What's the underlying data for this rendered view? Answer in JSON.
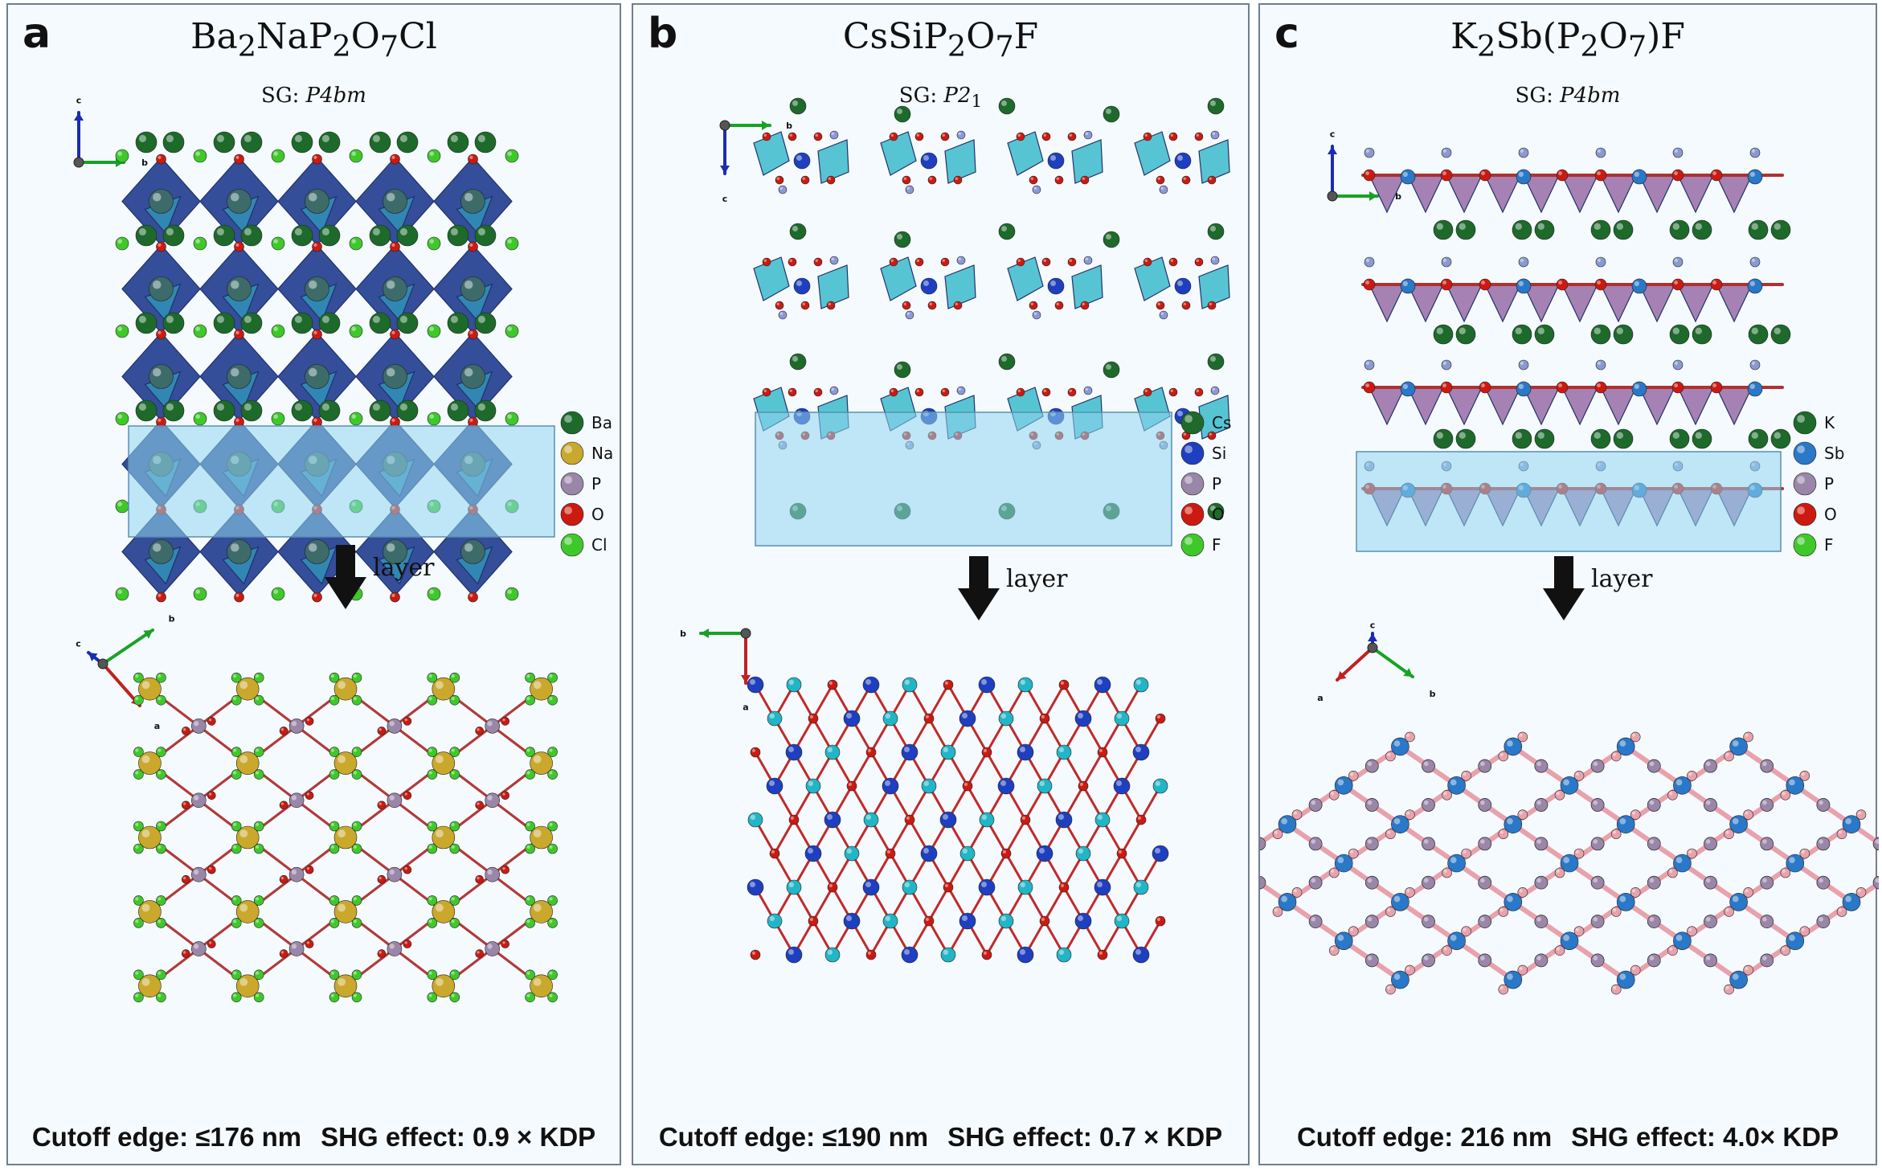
{
  "panels": [
    {
      "letter": "a",
      "title_parts": [
        "Ba",
        "2",
        "NaP",
        "2",
        "O",
        "7",
        "Cl"
      ],
      "sg_prefix": "SG: ",
      "sg_group": "P4bm",
      "legend": [
        {
          "label": "Ba",
          "color": "#1d6a2a"
        },
        {
          "label": "Na",
          "color": "#c9a82c"
        },
        {
          "label": "P",
          "color": "#9a86a8"
        },
        {
          "label": "O",
          "color": "#cc1a10"
        },
        {
          "label": "Cl",
          "color": "#3fc82a"
        }
      ],
      "layer_label": "layer",
      "axes_top": [
        "c",
        "b"
      ],
      "axes_bottom": [
        "c",
        "b",
        "a"
      ],
      "cutoff": "Cutoff edge: ≤176 nm",
      "shg": "SHG effect: 0.9 × KDP"
    },
    {
      "letter": "b",
      "title_parts": [
        "CsSiP",
        "2",
        "O",
        "7",
        "F"
      ],
      "sg_prefix": "SG: ",
      "sg_group": "P2",
      "sg_sub": "1",
      "legend": [
        {
          "label": "Cs",
          "color": "#1d6a2a"
        },
        {
          "label": "Si",
          "color": "#1e3fbf"
        },
        {
          "label": "P",
          "color": "#9a86a8"
        },
        {
          "label": "O",
          "color": "#cc1a10"
        },
        {
          "label": "F",
          "color": "#3fc82a"
        }
      ],
      "layer_label": "layer",
      "axes_top": [
        "b",
        "c"
      ],
      "axes_bottom": [
        "b",
        "a"
      ],
      "cutoff": "Cutoff edge: ≤190 nm",
      "shg": "SHG effect: 0.7 × KDP"
    },
    {
      "letter": "c",
      "title_parts": [
        "K",
        "2",
        "Sb(P",
        "2",
        "O",
        "7",
        ")F"
      ],
      "sg_prefix": "SG: ",
      "sg_group": "P4bm",
      "legend": [
        {
          "label": "K",
          "color": "#1d6a2a"
        },
        {
          "label": "Sb",
          "color": "#2a78c8"
        },
        {
          "label": "P",
          "color": "#9a86a8"
        },
        {
          "label": "O",
          "color": "#cc1a10"
        },
        {
          "label": "F",
          "color": "#3fc82a"
        }
      ],
      "layer_label": "layer",
      "axes_top": [
        "c",
        "b"
      ],
      "axes_bottom": [
        "c",
        "a",
        "b"
      ],
      "cutoff": "Cutoff edge: 216 nm",
      "shg": "SHG effect: 4.0× KDP"
    }
  ]
}
